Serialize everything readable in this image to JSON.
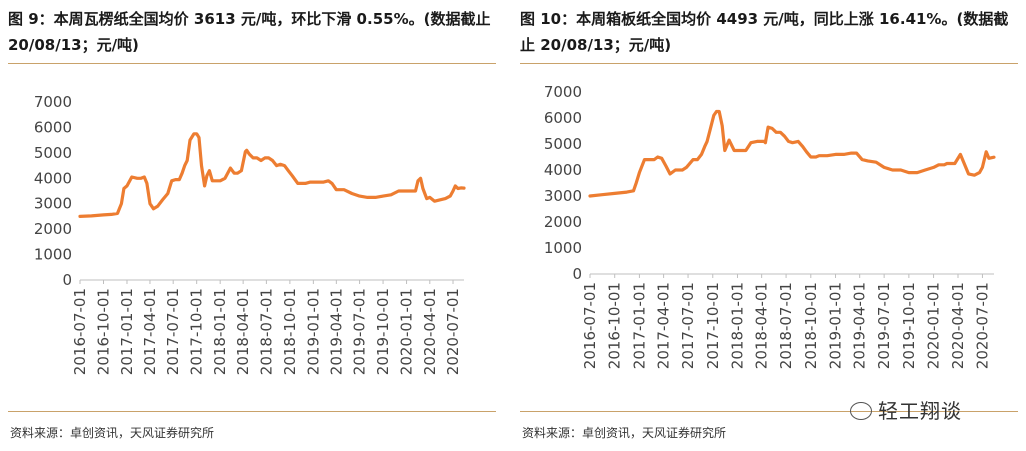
{
  "left": {
    "title": "图 9：本周瓦楞纸全国均价 3613 元/吨，环比下滑 0.55%。(数据截止 20/08/13；元/吨)",
    "source": "资料来源：卓创资讯，天风证券研究所"
  },
  "right": {
    "title": "图 10：本周箱板纸全国均价 4493 元/吨，同比上涨 16.41%。(数据截止 20/08/13；元/吨)",
    "source": "资料来源：卓创资讯，天风证券研究所"
  },
  "watermark": {
    "text": "轻工翔谈",
    "icon": "wechat-icon"
  },
  "line_color": "#ED7D31",
  "chart_data": [
    {
      "type": "line",
      "ylim": [
        0,
        7000
      ],
      "yticks": [
        0,
        1000,
        2000,
        3000,
        4000,
        5000,
        6000,
        7000
      ],
      "xticks": [
        "2016-07-01",
        "2016-10-01",
        "2017-01-01",
        "2017-04-01",
        "2017-07-01",
        "2017-10-01",
        "2018-01-01",
        "2018-04-01",
        "2018-07-01",
        "2018-10-01",
        "2019-01-01",
        "2019-04-01",
        "2019-07-01",
        "2019-10-01",
        "2020-01-01",
        "2020-04-01",
        "2020-07-01"
      ],
      "x_range": [
        "2016-07-01",
        "2020-08-13"
      ],
      "series": [
        {
          "x": [
            "2016-07-01",
            "2016-08-15",
            "2016-10-01",
            "2016-11-01",
            "2016-11-25",
            "2016-12-10",
            "2016-12-20",
            "2017-01-01",
            "2017-01-20",
            "2017-02-10",
            "2017-02-25",
            "2017-03-10",
            "2017-03-20",
            "2017-04-01",
            "2017-04-15",
            "2017-05-01",
            "2017-05-20",
            "2017-06-10",
            "2017-06-25",
            "2017-07-10",
            "2017-07-25",
            "2017-08-05",
            "2017-08-15",
            "2017-08-25",
            "2017-09-05",
            "2017-09-20",
            "2017-10-01",
            "2017-10-10",
            "2017-10-20",
            "2017-11-01",
            "2017-11-10",
            "2017-11-20",
            "2017-12-01",
            "2017-12-15",
            "2018-01-01",
            "2018-01-20",
            "2018-02-10",
            "2018-02-25",
            "2018-03-10",
            "2018-03-25",
            "2018-04-10",
            "2018-04-15",
            "2018-04-25",
            "2018-05-10",
            "2018-05-25",
            "2018-06-10",
            "2018-06-25",
            "2018-07-10",
            "2018-07-25",
            "2018-08-10",
            "2018-08-25",
            "2018-09-10",
            "2018-09-25",
            "2018-10-10",
            "2018-11-01",
            "2018-12-01",
            "2018-12-20",
            "2019-01-01",
            "2019-01-20",
            "2019-02-10",
            "2019-03-01",
            "2019-03-15",
            "2019-04-01",
            "2019-05-01",
            "2019-06-01",
            "2019-07-01",
            "2019-08-01",
            "2019-09-01",
            "2019-10-01",
            "2019-11-01",
            "2019-12-01",
            "2019-12-20",
            "2020-01-01",
            "2020-01-20",
            "2020-02-05",
            "2020-02-15",
            "2020-02-25",
            "2020-03-05",
            "2020-03-20",
            "2020-04-01",
            "2020-04-20",
            "2020-05-10",
            "2020-06-01",
            "2020-06-20",
            "2020-07-01",
            "2020-07-10",
            "2020-07-20",
            "2020-08-01",
            "2020-08-13"
          ],
          "values": [
            2500,
            2520,
            2560,
            2580,
            2620,
            3000,
            3600,
            3700,
            4050,
            4000,
            4000,
            4050,
            3800,
            3000,
            2800,
            2900,
            3150,
            3400,
            3900,
            3950,
            3950,
            4200,
            4500,
            4700,
            5500,
            5750,
            5750,
            5600,
            4500,
            3700,
            4100,
            4300,
            3900,
            3900,
            3900,
            4000,
            4400,
            4200,
            4200,
            4300,
            5050,
            5100,
            4950,
            4800,
            4800,
            4700,
            4800,
            4800,
            4700,
            4500,
            4550,
            4500,
            4300,
            4100,
            3800,
            3800,
            3850,
            3850,
            3850,
            3850,
            3900,
            3800,
            3550,
            3550,
            3400,
            3300,
            3250,
            3250,
            3300,
            3350,
            3500,
            3500,
            3500,
            3500,
            3500,
            3900,
            4000,
            3600,
            3200,
            3250,
            3100,
            3150,
            3200,
            3300,
            3500,
            3700,
            3600,
            3620,
            3613
          ]
        }
      ]
    },
    {
      "type": "line",
      "ylim": [
        0,
        7000
      ],
      "yticks": [
        0,
        1000,
        2000,
        3000,
        4000,
        5000,
        6000,
        7000
      ],
      "xticks": [
        "2016-07-01",
        "2016-10-01",
        "2017-01-01",
        "2017-04-01",
        "2017-07-01",
        "2017-10-01",
        "2018-01-01",
        "2018-04-01",
        "2018-07-01",
        "2018-10-01",
        "2019-01-01",
        "2019-04-01",
        "2019-07-01",
        "2019-10-01",
        "2020-01-01",
        "2020-04-01",
        "2020-07-01"
      ],
      "x_range": [
        "2016-07-01",
        "2020-08-13"
      ],
      "series": [
        {
          "x": [
            "2016-07-01",
            "2016-08-15",
            "2016-10-01",
            "2016-11-15",
            "2016-12-10",
            "2016-12-20",
            "2017-01-01",
            "2017-01-20",
            "2017-02-10",
            "2017-02-25",
            "2017-03-10",
            "2017-03-25",
            "2017-04-10",
            "2017-04-25",
            "2017-05-15",
            "2017-06-10",
            "2017-06-25",
            "2017-07-20",
            "2017-08-05",
            "2017-08-20",
            "2017-09-01",
            "2017-09-10",
            "2017-09-20",
            "2017-10-05",
            "2017-10-15",
            "2017-10-25",
            "2017-11-05",
            "2017-11-15",
            "2017-12-01",
            "2017-12-20",
            "2018-01-10",
            "2018-02-01",
            "2018-02-20",
            "2018-03-15",
            "2018-04-10",
            "2018-04-15",
            "2018-04-25",
            "2018-05-10",
            "2018-05-25",
            "2018-06-10",
            "2018-06-25",
            "2018-07-10",
            "2018-07-25",
            "2018-08-15",
            "2018-09-01",
            "2018-09-15",
            "2018-10-01",
            "2018-10-20",
            "2018-11-01",
            "2018-12-01",
            "2019-01-01",
            "2019-02-01",
            "2019-03-01",
            "2019-03-20",
            "2019-04-10",
            "2019-05-01",
            "2019-06-01",
            "2019-07-01",
            "2019-08-01",
            "2019-09-01",
            "2019-10-01",
            "2019-11-01",
            "2019-12-01",
            "2020-01-01",
            "2020-01-20",
            "2020-02-10",
            "2020-02-20",
            "2020-03-05",
            "2020-03-20",
            "2020-04-10",
            "2020-05-10",
            "2020-06-01",
            "2020-06-20",
            "2020-07-01",
            "2020-07-15",
            "2020-07-25",
            "2020-08-13"
          ],
          "values": [
            3000,
            3050,
            3100,
            3150,
            3200,
            3500,
            3900,
            4400,
            4400,
            4400,
            4500,
            4450,
            4150,
            3850,
            4000,
            4000,
            4100,
            4400,
            4400,
            4600,
            4900,
            5100,
            5500,
            6100,
            6250,
            6250,
            5700,
            4750,
            5150,
            4750,
            4750,
            4750,
            5050,
            5100,
            5100,
            5050,
            5650,
            5600,
            5450,
            5450,
            5300,
            5100,
            5050,
            5100,
            4900,
            4700,
            4500,
            4500,
            4550,
            4550,
            4600,
            4600,
            4650,
            4650,
            4400,
            4350,
            4300,
            4100,
            4000,
            4000,
            3900,
            3900,
            4000,
            4100,
            4200,
            4200,
            4250,
            4250,
            4250,
            4600,
            3850,
            3800,
            3900,
            4100,
            4700,
            4450,
            4493
          ]
        }
      ]
    }
  ]
}
